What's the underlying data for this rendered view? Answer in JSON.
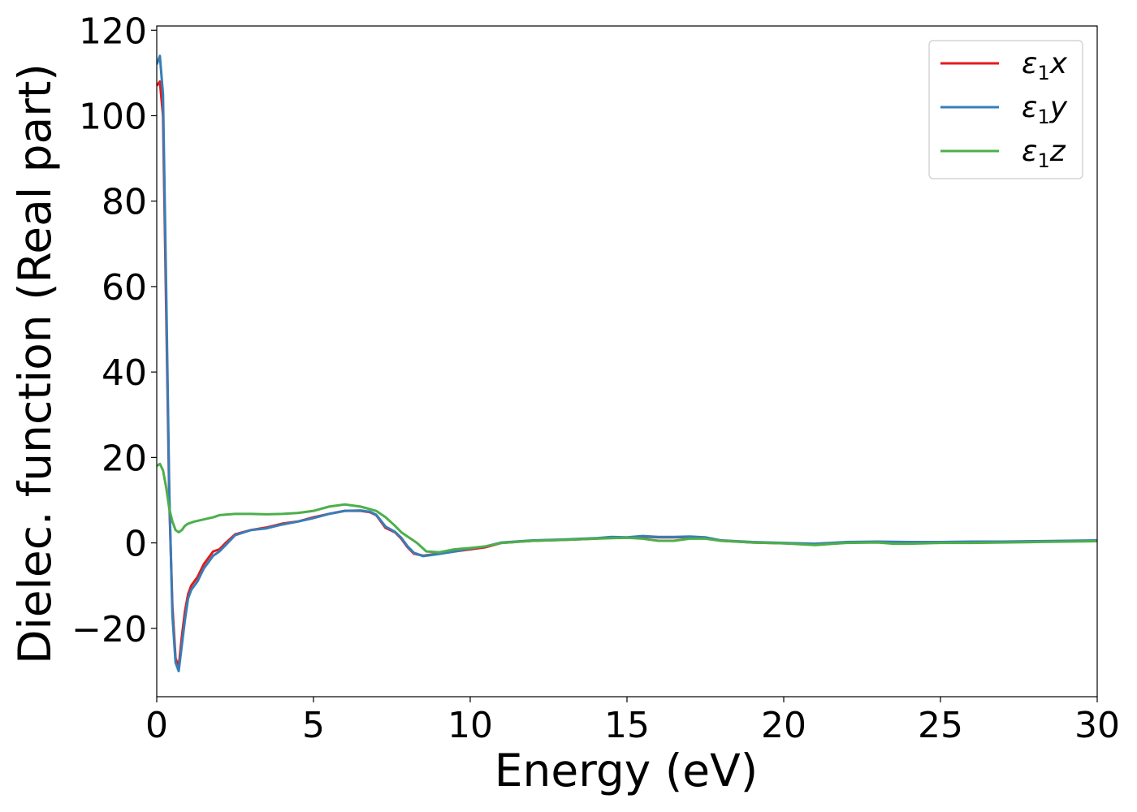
{
  "chart_data": {
    "type": "line",
    "title": "",
    "xlabel": "Energy (eV)",
    "ylabel": "Dielec. function (Real part)",
    "xlim": [
      0,
      30
    ],
    "ylim": [
      -36,
      121
    ],
    "xticks": [
      0,
      5,
      10,
      15,
      20,
      25,
      30
    ],
    "xtick_labels": [
      "0",
      "5",
      "10",
      "15",
      "20",
      "25",
      "30"
    ],
    "yticks": [
      -20,
      0,
      20,
      40,
      60,
      80,
      100,
      120
    ],
    "ytick_labels": [
      "−20",
      "0",
      "20",
      "40",
      "60",
      "80",
      "100",
      "120"
    ],
    "grid": false,
    "legend_position": "top-right",
    "series": [
      {
        "name": "ε₁x",
        "legend": {
          "eps": "ε",
          "sub": "1",
          "axis": "x"
        },
        "color": "#e41a1c",
        "x": [
          0.0,
          0.1,
          0.2,
          0.3,
          0.4,
          0.5,
          0.6,
          0.7,
          0.8,
          0.9,
          1.0,
          1.1,
          1.3,
          1.5,
          1.8,
          2.0,
          2.2,
          2.5,
          3.0,
          3.5,
          4.0,
          4.5,
          5.0,
          5.5,
          6.0,
          6.5,
          6.8,
          7.0,
          7.3,
          7.6,
          7.8,
          8.0,
          8.2,
          8.5,
          9.0,
          9.5,
          10.0,
          10.5,
          11.0,
          12.0,
          13.0,
          14.0,
          14.5,
          15.0,
          15.5,
          16.0,
          16.5,
          17.0,
          17.5,
          18.0,
          18.5,
          19.0,
          20.0,
          21.0,
          22.0,
          23.0,
          24.0,
          25.0,
          26.0,
          27.0,
          28.0,
          29.0,
          30.0
        ],
        "y": [
          107,
          108,
          100,
          55,
          10,
          -15,
          -27,
          -29,
          -22,
          -16,
          -12,
          -10,
          -8,
          -5,
          -2,
          -1.5,
          0,
          2,
          3,
          3.6,
          4.5,
          5,
          6,
          6.8,
          7.5,
          7.5,
          7.2,
          6.5,
          3.5,
          2.5,
          1,
          -1,
          -2.5,
          -3,
          -2.5,
          -2,
          -1.5,
          -1,
          0,
          0.5,
          0.7,
          1,
          1.3,
          1.2,
          1.5,
          1.3,
          1.3,
          1.4,
          1.2,
          0.5,
          0.3,
          0.1,
          -0.1,
          -0.3,
          0.1,
          0.2,
          0.1,
          0.1,
          0.2,
          0.2,
          0.3,
          0.4,
          0.5
        ]
      },
      {
        "name": "ε₁y",
        "legend": {
          "eps": "ε",
          "sub": "1",
          "axis": "y"
        },
        "color": "#377eb8",
        "x": [
          0.0,
          0.1,
          0.2,
          0.3,
          0.4,
          0.5,
          0.6,
          0.7,
          0.8,
          0.9,
          1.0,
          1.1,
          1.3,
          1.5,
          1.8,
          2.0,
          2.2,
          2.5,
          3.0,
          3.5,
          4.0,
          4.5,
          5.0,
          5.5,
          6.0,
          6.5,
          6.8,
          7.0,
          7.3,
          7.6,
          7.8,
          8.0,
          8.2,
          8.5,
          9.0,
          9.5,
          10.0,
          10.5,
          11.0,
          12.0,
          13.0,
          14.0,
          14.5,
          15.0,
          15.5,
          16.0,
          16.5,
          17.0,
          17.5,
          18.0,
          18.5,
          19.0,
          20.0,
          21.0,
          22.0,
          23.0,
          24.0,
          25.0,
          26.0,
          27.0,
          28.0,
          29.0,
          30.0
        ],
        "y": [
          112,
          114,
          105,
          60,
          12,
          -17,
          -28,
          -30,
          -24,
          -18,
          -13,
          -11,
          -9,
          -6,
          -3,
          -2,
          -0.5,
          1.8,
          3,
          3.4,
          4.3,
          5,
          5.8,
          6.8,
          7.5,
          7.6,
          7.3,
          6.6,
          3.8,
          2.6,
          1.2,
          -0.8,
          -2.3,
          -3.1,
          -2.6,
          -2.0,
          -1.3,
          -0.8,
          0.1,
          0.6,
          0.8,
          1.1,
          1.4,
          1.3,
          1.6,
          1.4,
          1.4,
          1.5,
          1.3,
          0.6,
          0.4,
          0.2,
          0,
          -0.2,
          0.2,
          0.3,
          0.2,
          0.2,
          0.3,
          0.3,
          0.4,
          0.5,
          0.6
        ]
      },
      {
        "name": "ε₁z",
        "legend": {
          "eps": "ε",
          "sub": "1",
          "axis": "z"
        },
        "color": "#4daf4a",
        "x": [
          0.0,
          0.1,
          0.2,
          0.3,
          0.4,
          0.5,
          0.6,
          0.7,
          0.8,
          0.9,
          1.0,
          1.2,
          1.5,
          1.8,
          2.0,
          2.5,
          3.0,
          3.5,
          4.0,
          4.5,
          5.0,
          5.5,
          6.0,
          6.5,
          7.0,
          7.3,
          7.6,
          7.8,
          8.0,
          8.3,
          8.6,
          9.0,
          9.5,
          10.0,
          10.5,
          11.0,
          12.0,
          13.0,
          14.0,
          15.0,
          15.5,
          16.0,
          16.5,
          17.0,
          17.5,
          18.0,
          18.5,
          19.0,
          20.0,
          21.0,
          22.0,
          23.0,
          23.5,
          24.0,
          25.0,
          26.0,
          27.0,
          28.0,
          29.0,
          30.0
        ],
        "y": [
          18,
          18.5,
          17,
          13,
          8,
          5,
          3,
          2.5,
          3,
          4,
          4.5,
          5,
          5.5,
          6,
          6.5,
          6.8,
          6.8,
          6.7,
          6.8,
          7,
          7.5,
          8.5,
          9,
          8.5,
          7.5,
          6,
          4,
          2.5,
          1.5,
          0,
          -2,
          -2.2,
          -1.5,
          -1.2,
          -0.8,
          0,
          0.5,
          0.7,
          1,
          1.2,
          1,
          0.5,
          0.5,
          1,
          1,
          0.5,
          0.3,
          0.1,
          -0.1,
          -0.5,
          0,
          0.1,
          -0.2,
          -0.2,
          0,
          0,
          0.1,
          0.2,
          0.3,
          0.4
        ]
      }
    ]
  }
}
